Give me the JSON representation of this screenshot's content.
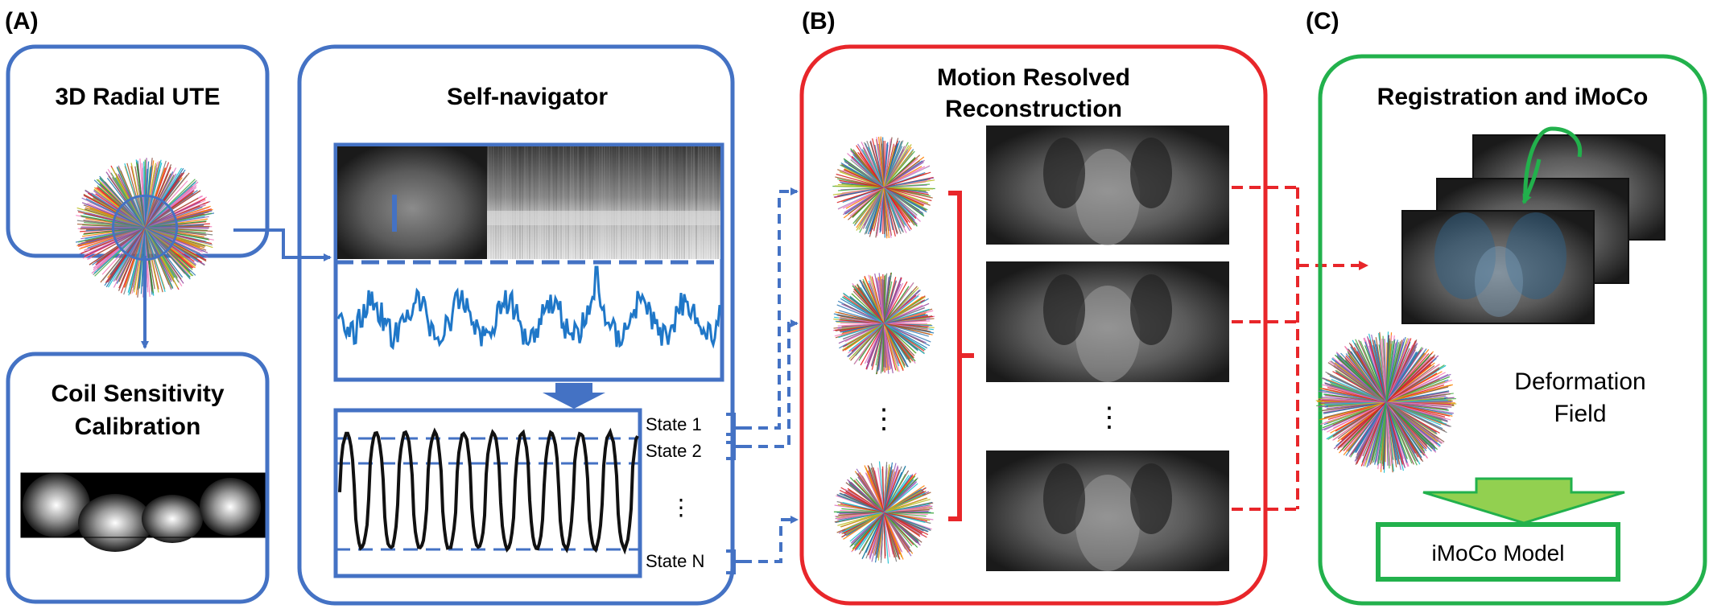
{
  "panel_a": {
    "letter": "(A)",
    "radial_title": "3D Radial UTE",
    "coil_title_line1": "Coil Sensitivity",
    "coil_title_line2": "Calibration",
    "nav_title": "Self-navigator",
    "states": [
      "State 1",
      "State 2",
      "State N"
    ],
    "ellipsis": "⋮"
  },
  "panel_b": {
    "letter": "(B)",
    "title_line1": "Motion Resolved",
    "title_line2": "Reconstruction",
    "ellipsis": "⋮"
  },
  "panel_c": {
    "letter": "(C)",
    "title": "Registration and iMoCo",
    "deformation_line1": "Deformation",
    "deformation_line2": "Field",
    "model_label": "iMoCo Model"
  },
  "colors": {
    "blue": "#4472C4",
    "red": "#E8262A",
    "green": "#22B14C",
    "signal": "#1F77C8",
    "arrow_green": "#92D050"
  }
}
